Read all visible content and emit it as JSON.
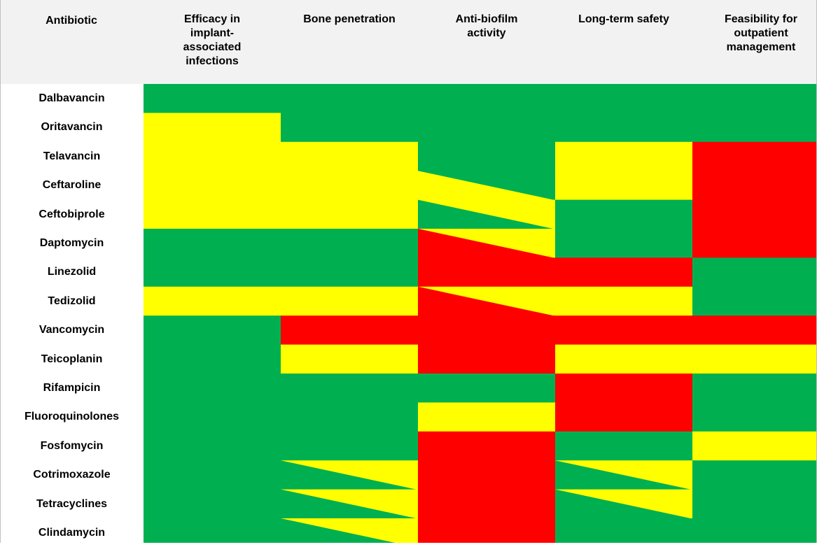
{
  "chart_data": {
    "type": "heatmap",
    "corner_header": "Antibiotic",
    "columns": [
      [
        "Efficacy in",
        "implant-",
        "associated",
        "infections"
      ],
      [
        "Bone penetration"
      ],
      [
        "Anti-biofilm",
        "activity"
      ],
      [
        "Long-term safety"
      ],
      [
        "Feasibility for",
        "outpatient",
        "management"
      ]
    ],
    "rows": [
      "Dalbavancin",
      "Oritavancin",
      "Telavancin",
      "Ceftaroline",
      "Ceftobiprole",
      "Daptomycin",
      "Linezolid",
      "Tedizolid",
      "Vancomycin",
      "Teicoplanin",
      "Rifampicin",
      "Fluoroquinolones",
      "Fosfomycin",
      "Cotrimoxazole",
      "Tetracyclines",
      "Clindamycin"
    ],
    "colors": {
      "green": "#00b050",
      "yellow": "#ffff00",
      "red": "#ff0000"
    },
    "cells": [
      [
        "green",
        "green",
        "green",
        "green",
        "green"
      ],
      [
        "yellow",
        "green",
        "green",
        "green",
        "green"
      ],
      [
        "yellow",
        "yellow",
        "green",
        "yellow",
        "red"
      ],
      [
        "yellow",
        "yellow",
        "green/yellow",
        "yellow",
        "red"
      ],
      [
        "yellow",
        "yellow",
        "yellow/green",
        "green",
        "red"
      ],
      [
        "green",
        "green",
        "yellow/red",
        "green",
        "red"
      ],
      [
        "green",
        "green",
        "red",
        "red",
        "green"
      ],
      [
        "yellow",
        "yellow",
        "yellow/red",
        "yellow",
        "green"
      ],
      [
        "green",
        "red",
        "red",
        "red",
        "red"
      ],
      [
        "green",
        "yellow",
        "red",
        "yellow",
        "yellow"
      ],
      [
        "green",
        "green",
        "green",
        "red",
        "green"
      ],
      [
        "green",
        "green",
        "yellow",
        "red",
        "green"
      ],
      [
        "green",
        "green",
        "red",
        "green",
        "yellow"
      ],
      [
        "green",
        "yellow/green",
        "red",
        "yellow/green",
        "green"
      ],
      [
        "green",
        "yellow/green",
        "red",
        "yellow/green",
        "green"
      ],
      [
        "green",
        "yellow/green",
        "red",
        "green",
        "green"
      ]
    ]
  }
}
